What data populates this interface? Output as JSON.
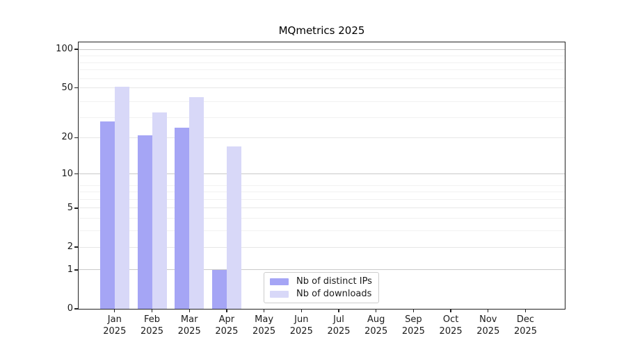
{
  "chart_data": {
    "type": "bar",
    "title": "MQmetrics 2025",
    "x_months": [
      "Jan",
      "Feb",
      "Mar",
      "Apr",
      "May",
      "Jun",
      "Jul",
      "Aug",
      "Sep",
      "Oct",
      "Nov",
      "Dec"
    ],
    "x_year": "2025",
    "series": [
      {
        "name": "Nb of distinct IPs",
        "color": "#a5a5f5",
        "values": [
          27,
          21,
          24,
          1,
          0,
          0,
          0,
          0,
          0,
          0,
          0,
          0
        ]
      },
      {
        "name": "Nb of downloads",
        "color": "#d8d8f8",
        "values": [
          51,
          32,
          42,
          17,
          0,
          0,
          0,
          0,
          0,
          0,
          0,
          0
        ]
      }
    ],
    "y_scale": "log10(1+value)",
    "y_tick_values": [
      0,
      1,
      2,
      5,
      10,
      20,
      50,
      100
    ],
    "y_tick_labels": [
      "0",
      "1",
      "2",
      "5",
      "10",
      "20",
      "50",
      "100"
    ],
    "ylim": [
      0,
      113
    ],
    "grid": {
      "major_values": [
        1,
        10,
        100
      ],
      "mid_values": [
        2,
        5,
        20,
        50
      ],
      "minor_values": [
        3,
        4,
        6,
        7,
        8,
        29,
        39,
        59,
        69,
        79,
        89
      ],
      "major_color": "#c9c9c9",
      "mid_color": "#e6e6e6",
      "minor_color": "#f1f1f1"
    },
    "legend": {
      "items": [
        "Nb of distinct IPs",
        "Nb of downloads"
      ],
      "position": "lower center"
    },
    "axis_color": "#222222",
    "text_color": "#1a1a1a",
    "background_color": "#ffffff"
  }
}
